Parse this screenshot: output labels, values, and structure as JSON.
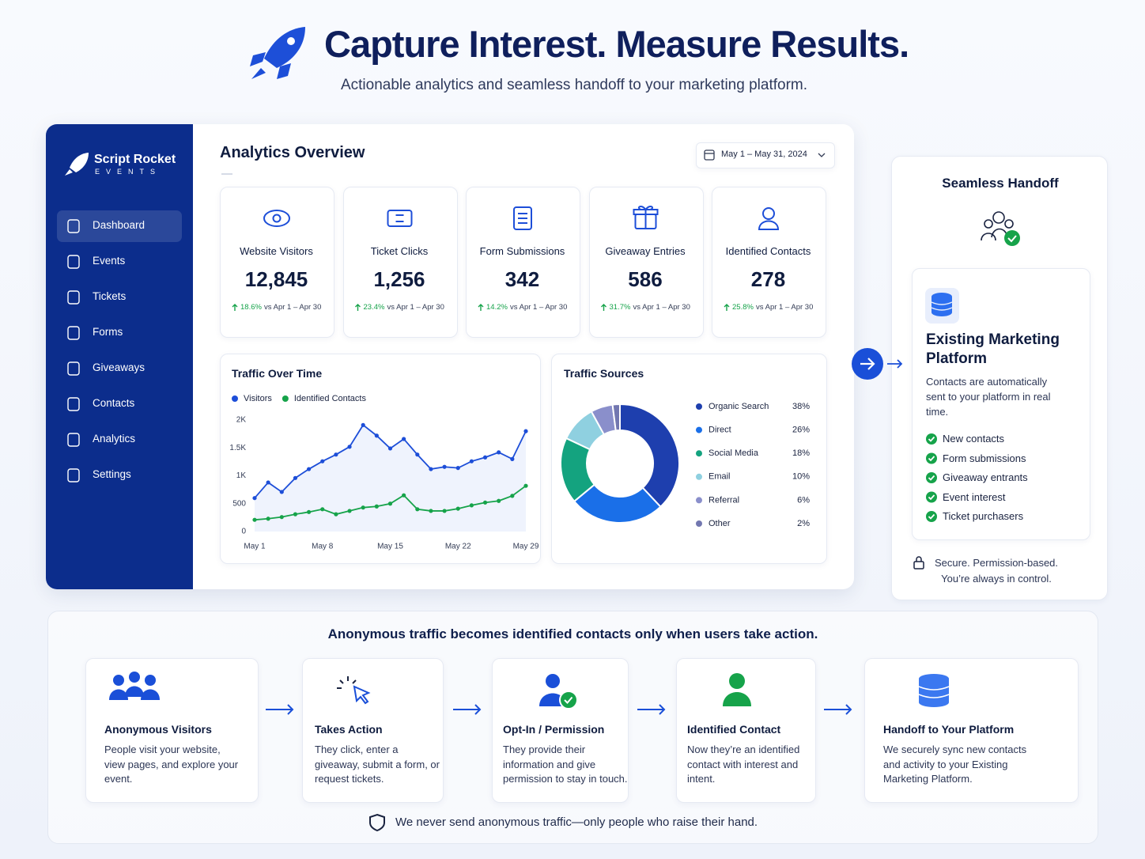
{
  "header": {
    "title": "Capture Interest. Measure Results.",
    "subtitle": "Actionable analytics and seamless handoff to your marketing platform."
  },
  "sidebar": {
    "brand": "Script Rocket",
    "brand_sub": "EVENTS",
    "nav": [
      "Dashboard",
      "Events",
      "Tickets",
      "Forms",
      "Giveaways",
      "Contacts",
      "Analytics",
      "Settings"
    ]
  },
  "overview": {
    "title": "Analytics Overview",
    "date_range": "May 1 – May 31, 2024",
    "kpis": [
      {
        "label": "Website Visitors",
        "value": "12,845",
        "change": "18.6%",
        "compare": "vs Apr 1 – Apr 30"
      },
      {
        "label": "Ticket Clicks",
        "value": "1,256",
        "change": "23.4%",
        "compare": "vs Apr 1 – Apr 30"
      },
      {
        "label": "Form Submissions",
        "value": "342",
        "change": "14.2%",
        "compare": "vs Apr 1 – Apr 30"
      },
      {
        "label": "Giveaway Entries",
        "value": "586",
        "change": "31.7%",
        "compare": "vs Apr 1 – Apr 30"
      },
      {
        "label": "Identified Contacts",
        "value": "278",
        "change": "25.8%",
        "compare": "vs Apr 1 – Apr 30"
      }
    ]
  },
  "chart_data": [
    {
      "type": "line",
      "title": "Traffic Over Time",
      "categories": [
        "May 1",
        null,
        null,
        null,
        null,
        "May 8",
        null,
        null,
        null,
        null,
        "May 15",
        null,
        null,
        null,
        null,
        "May 22",
        null,
        null,
        null,
        null,
        "May 29"
      ],
      "series": [
        {
          "name": "Visitors",
          "color": "#1d4ed8",
          "values": [
            600,
            880,
            710,
            960,
            1120,
            1260,
            1380,
            1520,
            1910,
            1720,
            1490,
            1660,
            1380,
            1120,
            1160,
            1140,
            1260,
            1330,
            1420,
            1300,
            1800
          ]
        },
        {
          "name": "Identified Contacts",
          "color": "#16a34a",
          "values": [
            210,
            230,
            260,
            310,
            350,
            400,
            310,
            370,
            430,
            450,
            500,
            650,
            400,
            370,
            370,
            410,
            470,
            520,
            550,
            640,
            820
          ]
        }
      ],
      "ylim": [
        0,
        2000
      ],
      "yticks": [
        0,
        500,
        {
          "value": 1000,
          "label": "1K"
        },
        {
          "value": 1500,
          "label": "1.5K"
        },
        {
          "value": 2000,
          "label": "2K"
        }
      ]
    },
    {
      "type": "pie",
      "title": "Traffic Sources",
      "donut": true,
      "categories": [
        "Organic Search",
        "Direct",
        "Social Media",
        "Email",
        "Referral",
        "Other"
      ],
      "values": [
        38,
        26,
        18,
        10,
        6,
        2
      ],
      "value_labels": [
        "38%",
        "26%",
        "18%",
        "10%",
        "6%",
        "2%"
      ],
      "colors": [
        "#1e3fae",
        "#1a6fe8",
        "#14a37f",
        "#8fd0e0",
        "#8a8fcb",
        "#7277b0"
      ]
    }
  ],
  "handoff": {
    "title": "Seamless Handoff",
    "platform_title": "Existing Marketing Platform",
    "description": "Contacts are automatically sent to your platform in real time.",
    "items": [
      "New contacts",
      "Form submissions",
      "Giveaway entrants",
      "Event interest",
      "Ticket purchasers"
    ],
    "footer": "Secure. Permission-based. You’re always in control."
  },
  "flow": {
    "title": "Anonymous traffic becomes identified contacts only when users take action.",
    "steps": [
      {
        "title": "Anonymous Visitors",
        "text": "People visit your website, view pages, and explore your event."
      },
      {
        "title": "Takes Action",
        "text": "They click, enter a giveaway, submit a form, or request tickets."
      },
      {
        "title": "Opt-In / Permission",
        "text": "They provide their information and give permission to stay in touch."
      },
      {
        "title": "Identified Contact",
        "text": "Now they’re an identified contact with interest and intent."
      },
      {
        "title": "Handoff to Your Platform",
        "text": "We securely sync new contacts and activity to your Existing Marketing Platform."
      }
    ],
    "footer": "We never send anonymous traffic—only people who raise their hand."
  }
}
